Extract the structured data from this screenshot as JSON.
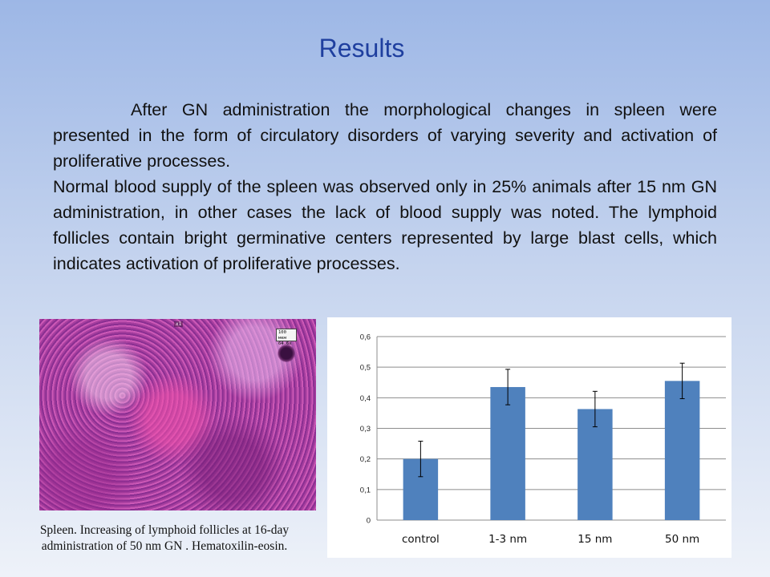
{
  "slide": {
    "title": "Results",
    "paragraph1": "After GN administration the morphological changes  in spleen were presented in the form of circulatory disorders of varying severity and activation of proliferative processes.",
    "paragraph2": "Normal blood supply of the spleen was observed only in 25%  animals after 15 nm GN administration, in other cases the lack of blood supply was noted. The lymphoid follicles contain bright germinative centers represented by large blast cells, which indicates activation of proliferative processes."
  },
  "micrograph": {
    "zoom_label": "x1",
    "scale_line1": "100 мкм",
    "scale_line2": "64.6x",
    "caption_line1": "Spleen. Increasing  of  lymphoid follicles at 16-day",
    "caption_line2": "administration of 50 nm GN . Hematoxilin-eosin."
  },
  "colors": {
    "bar": "#4f81bd",
    "title": "#1f3f9f"
  },
  "chart_data": {
    "type": "bar",
    "categories": [
      "control",
      "1-3 nm",
      "15 nm",
      "50 nm"
    ],
    "values": [
      0.2,
      0.435,
      0.363,
      0.455
    ],
    "error_plus_minus": [
      0.058,
      0.058,
      0.058,
      0.058
    ],
    "ylim": [
      0,
      0.6
    ],
    "yticks": [
      0,
      0.1,
      0.2,
      0.3,
      0.4,
      0.5,
      0.6
    ],
    "ytick_labels": [
      "0",
      "0,1",
      "0,2",
      "0,3",
      "0,4",
      "0,5",
      "0,6"
    ],
    "grid": true,
    "title": "",
    "xlabel": "",
    "ylabel": ""
  }
}
